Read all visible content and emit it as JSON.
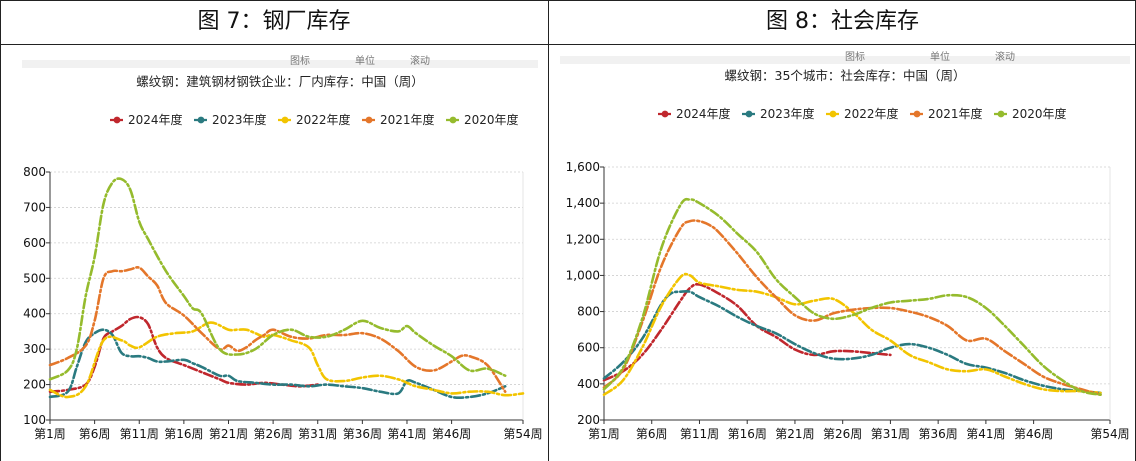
{
  "captions": {
    "left": "图 7：钢厂库存",
    "right": "图 8：社会库存"
  },
  "clipped_toolbar": [
    "图标",
    "单位",
    "滚动",
    "图标",
    "单位",
    "滚动"
  ],
  "chart_data": [
    {
      "type": "line",
      "title": "螺纹钢：建筑钢材钢铁企业：厂内库存：中国（周）",
      "xlabel": "",
      "ylabel": "",
      "ylim": [
        100,
        800
      ],
      "yticks": [
        "100",
        "200",
        "300",
        "400",
        "500",
        "600",
        "700",
        "800"
      ],
      "xlim": [
        1,
        54
      ],
      "xticks": [
        "第1周",
        "第6周",
        "第11周",
        "第16周",
        "第21周",
        "第26周",
        "第31周",
        "第36周",
        "第41周",
        "第46周",
        "第54周"
      ],
      "grid": "horizontal",
      "legend_position": "top",
      "series": [
        {
          "name": "2024年度",
          "color": "#c0272d",
          "x": [
            1,
            3,
            5,
            6,
            7,
            8,
            9,
            10,
            11,
            12,
            13,
            14,
            16,
            18,
            20,
            21,
            23,
            25,
            27,
            29,
            31
          ],
          "values": [
            180,
            185,
            200,
            250,
            330,
            350,
            365,
            385,
            390,
            370,
            305,
            275,
            255,
            235,
            215,
            205,
            200,
            205,
            200,
            195,
            200
          ]
        },
        {
          "name": "2023年度",
          "color": "#2a7a80",
          "x": [
            1,
            3,
            4,
            5,
            6,
            7,
            8,
            9,
            10,
            11,
            12,
            13,
            14,
            16,
            17,
            18,
            20,
            21,
            22,
            24,
            26,
            28,
            30,
            32,
            34,
            36,
            38,
            40,
            41,
            42,
            44,
            46,
            48,
            50,
            52
          ],
          "values": [
            165,
            180,
            250,
            320,
            345,
            355,
            340,
            290,
            280,
            280,
            275,
            265,
            265,
            270,
            260,
            250,
            225,
            225,
            210,
            205,
            200,
            200,
            195,
            200,
            195,
            190,
            180,
            175,
            210,
            205,
            185,
            165,
            165,
            175,
            195
          ]
        },
        {
          "name": "2022年度",
          "color": "#f2c400",
          "x": [
            1,
            3,
            5,
            7,
            9,
            10,
            11,
            13,
            15,
            17,
            19,
            21,
            22,
            23,
            24,
            25,
            26,
            28,
            30,
            31,
            32,
            34,
            36,
            38,
            40,
            41,
            42,
            44,
            46,
            48,
            50,
            52,
            54
          ],
          "values": [
            185,
            165,
            195,
            325,
            325,
            310,
            305,
            335,
            345,
            350,
            375,
            355,
            355,
            355,
            345,
            335,
            340,
            325,
            305,
            255,
            215,
            210,
            220,
            225,
            215,
            205,
            195,
            185,
            175,
            180,
            180,
            170,
            175
          ]
        },
        {
          "name": "2021年度",
          "color": "#e4762a",
          "x": [
            1,
            3,
            5,
            6,
            7,
            8,
            9,
            10,
            11,
            12,
            13,
            14,
            16,
            18,
            20,
            21,
            22,
            23,
            24,
            25,
            26,
            28,
            30,
            32,
            34,
            36,
            38,
            40,
            42,
            44,
            46,
            47,
            48,
            50,
            52
          ],
          "values": [
            255,
            275,
            310,
            380,
            500,
            520,
            520,
            525,
            530,
            505,
            480,
            430,
            395,
            345,
            300,
            310,
            295,
            305,
            325,
            340,
            355,
            335,
            330,
            340,
            340,
            345,
            330,
            295,
            250,
            240,
            265,
            280,
            280,
            255,
            180
          ]
        },
        {
          "name": "2020年度",
          "color": "#95bb2d",
          "x": [
            1,
            3,
            4,
            5,
            6,
            7,
            8,
            9,
            10,
            11,
            12,
            14,
            16,
            17,
            18,
            20,
            22,
            24,
            26,
            28,
            30,
            32,
            34,
            36,
            38,
            40,
            41,
            42,
            44,
            46,
            48,
            50,
            52
          ],
          "values": [
            215,
            240,
            300,
            450,
            560,
            710,
            770,
            780,
            750,
            660,
            610,
            520,
            450,
            415,
            400,
            300,
            285,
            300,
            340,
            355,
            335,
            335,
            355,
            380,
            360,
            350,
            365,
            345,
            310,
            280,
            240,
            245,
            225
          ]
        }
      ]
    },
    {
      "type": "line",
      "title": "螺纹钢：35个城市：社会库存：中国（周）",
      "xlabel": "",
      "ylabel": "",
      "ylim": [
        200,
        1600
      ],
      "yticks": [
        "200",
        "400",
        "600",
        "800",
        "1,000",
        "1,200",
        "1,400",
        "1,600"
      ],
      "xlim": [
        1,
        54
      ],
      "xticks": [
        "第1周",
        "第6周",
        "第11周",
        "第16周",
        "第21周",
        "第26周",
        "第31周",
        "第36周",
        "第41周",
        "第46周",
        "第54周"
      ],
      "grid": "horizontal",
      "legend_position": "top",
      "series": [
        {
          "name": "2024年度",
          "color": "#c0272d",
          "x": [
            1,
            3,
            5,
            7,
            9,
            10,
            11,
            13,
            15,
            17,
            19,
            21,
            23,
            25,
            27,
            29,
            31
          ],
          "values": [
            420,
            470,
            560,
            700,
            860,
            930,
            950,
            900,
            830,
            720,
            660,
            590,
            560,
            580,
            580,
            570,
            560
          ]
        },
        {
          "name": "2023年度",
          "color": "#2a7a80",
          "x": [
            1,
            3,
            5,
            7,
            8,
            9,
            10,
            11,
            13,
            15,
            17,
            19,
            21,
            23,
            25,
            27,
            29,
            31,
            33,
            35,
            37,
            39,
            41,
            43,
            45,
            47,
            49,
            51,
            53
          ],
          "values": [
            430,
            520,
            650,
            840,
            900,
            910,
            910,
            880,
            830,
            770,
            720,
            680,
            620,
            570,
            540,
            540,
            560,
            600,
            620,
            600,
            560,
            510,
            490,
            460,
            420,
            390,
            370,
            360,
            350
          ]
        },
        {
          "name": "2022年度",
          "color": "#f2c400",
          "x": [
            1,
            3,
            5,
            7,
            9,
            10,
            11,
            13,
            15,
            17,
            19,
            21,
            23,
            25,
            27,
            29,
            31,
            33,
            35,
            37,
            39,
            41,
            43,
            45,
            47,
            49,
            51,
            53
          ],
          "values": [
            340,
            420,
            600,
            830,
            990,
            1000,
            960,
            940,
            920,
            910,
            880,
            840,
            860,
            870,
            800,
            700,
            640,
            560,
            520,
            480,
            470,
            480,
            440,
            400,
            370,
            360,
            360,
            350
          ]
        },
        {
          "name": "2021年度",
          "color": "#e4762a",
          "x": [
            1,
            3,
            5,
            7,
            9,
            10,
            11,
            12,
            13,
            15,
            17,
            19,
            21,
            23,
            25,
            27,
            29,
            31,
            33,
            35,
            37,
            39,
            41,
            43,
            45,
            47,
            49,
            51,
            53
          ],
          "values": [
            380,
            480,
            740,
            1050,
            1260,
            1300,
            1300,
            1280,
            1240,
            1120,
            990,
            880,
            780,
            750,
            790,
            810,
            820,
            820,
            800,
            770,
            720,
            640,
            650,
            580,
            510,
            440,
            400,
            370,
            340
          ]
        },
        {
          "name": "2020年度",
          "color": "#95bb2d",
          "x": [
            1,
            3,
            5,
            7,
            9,
            10,
            11,
            13,
            15,
            17,
            19,
            21,
            23,
            25,
            27,
            29,
            31,
            33,
            35,
            37,
            39,
            41,
            43,
            45,
            47,
            49,
            51,
            53
          ],
          "values": [
            370,
            490,
            760,
            1150,
            1390,
            1420,
            1400,
            1330,
            1230,
            1130,
            980,
            880,
            790,
            760,
            780,
            820,
            850,
            860,
            870,
            890,
            880,
            820,
            720,
            610,
            500,
            420,
            360,
            340
          ]
        }
      ]
    }
  ]
}
